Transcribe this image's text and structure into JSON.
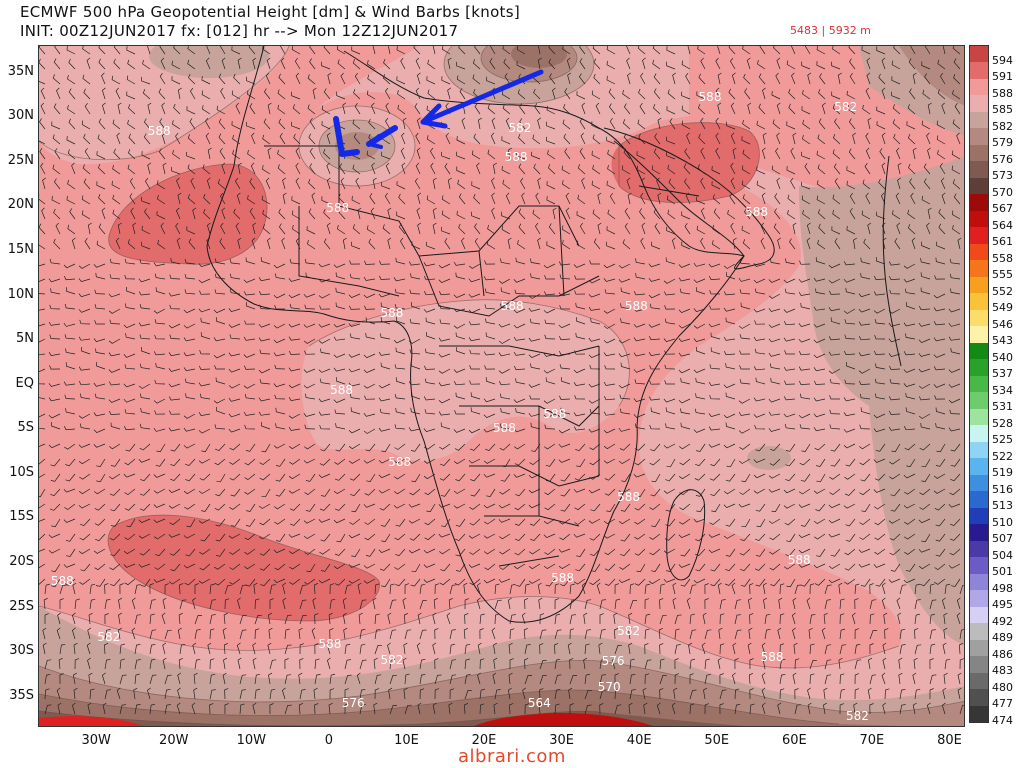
{
  "title": {
    "line1": "ECMWF 500 hPa Geopotential Height [dm] & Wind Barbs [knots]",
    "line2": "INIT: 00Z12JUN2017 fx: [012] hr --> Mon 12Z12JUN2017"
  },
  "minmax_text": "5483 | 5932 m",
  "lat_ticks": [
    "35N",
    "30N",
    "25N",
    "20N",
    "15N",
    "10N",
    "5N",
    "EQ",
    "5S",
    "10S",
    "15S",
    "20S",
    "25S",
    "30S",
    "35S"
  ],
  "lon_ticks": [
    "30W",
    "20W",
    "10W",
    "0",
    "10E",
    "20E",
    "30E",
    "40E",
    "50E",
    "60E",
    "70E",
    "80E"
  ],
  "colorbar": {
    "levels": [
      "594",
      "591",
      "588",
      "585",
      "582",
      "579",
      "576",
      "573",
      "570",
      "567",
      "564",
      "561",
      "558",
      "555",
      "552",
      "549",
      "546",
      "543",
      "540",
      "537",
      "534",
      "531",
      "528",
      "525",
      "522",
      "519",
      "516",
      "513",
      "510",
      "507",
      "504",
      "501",
      "498",
      "495",
      "492",
      "489",
      "486",
      "483",
      "480",
      "477",
      "474"
    ],
    "colors": [
      "#c94545",
      "#e26b6b",
      "#f09a9a",
      "#eaaeae",
      "#c7a39b",
      "#b4897f",
      "#9c7266",
      "#7f5a4f",
      "#5e3f38",
      "#9e0a0a",
      "#c00e0e",
      "#e02020",
      "#f04a1a",
      "#f5761a",
      "#f7a020",
      "#f9c23a",
      "#fcdc6a",
      "#fdf2a8",
      "#138a13",
      "#2aa12a",
      "#48b848",
      "#6dcd6d",
      "#9ee39e",
      "#c8f5f0",
      "#8fd4f5",
      "#5bb4f0",
      "#3e8fe0",
      "#2a6ad0",
      "#1f3fb8",
      "#281a90",
      "#4a3aa8",
      "#6a5cc4",
      "#8e84d8",
      "#b0a8e6",
      "#d6d0f4",
      "#bcbcbc",
      "#a0a0a0",
      "#858585",
      "#6a6a6a",
      "#505050",
      "#363636"
    ]
  },
  "contour_labels": [
    {
      "text": "588",
      "lon": -22,
      "lat": 28.5
    },
    {
      "text": "588",
      "lon": 1,
      "lat": 19.8
    },
    {
      "text": "582",
      "lon": 24.5,
      "lat": 28.8
    },
    {
      "text": "588",
      "lon": 24,
      "lat": 25.5
    },
    {
      "text": "588",
      "lon": 49,
      "lat": 32.3
    },
    {
      "text": "582",
      "lon": 66.5,
      "lat": 31.2
    },
    {
      "text": "588",
      "lon": 55,
      "lat": 19.4
    },
    {
      "text": "588",
      "lon": 8,
      "lat": 8.1
    },
    {
      "text": "588",
      "lon": 23.5,
      "lat": 8.8
    },
    {
      "text": "588",
      "lon": 39.5,
      "lat": 8.8
    },
    {
      "text": "588",
      "lon": 1.5,
      "lat": -0.6
    },
    {
      "text": "588",
      "lon": 29,
      "lat": -3.3
    },
    {
      "text": "588",
      "lon": 22.5,
      "lat": -4.8
    },
    {
      "text": "588",
      "lon": 9,
      "lat": -8.7
    },
    {
      "text": "588",
      "lon": 38.5,
      "lat": -12.6
    },
    {
      "text": "588",
      "lon": -34.5,
      "lat": -22
    },
    {
      "text": "588",
      "lon": 30,
      "lat": -21.7
    },
    {
      "text": "588",
      "lon": 60.5,
      "lat": -19.7
    },
    {
      "text": "582",
      "lon": -28.5,
      "lat": -28.3
    },
    {
      "text": "582",
      "lon": 38.5,
      "lat": -27.6
    },
    {
      "text": "588",
      "lon": 0,
      "lat": -29.1
    },
    {
      "text": "582",
      "lon": 8,
      "lat": -30.9
    },
    {
      "text": "576",
      "lon": 36.5,
      "lat": -31
    },
    {
      "text": "588",
      "lon": 57,
      "lat": -30.5
    },
    {
      "text": "570",
      "lon": 36,
      "lat": -33.9
    },
    {
      "text": "576",
      "lon": 3,
      "lat": -35.7
    },
    {
      "text": "564",
      "lon": 27,
      "lat": -35.7
    },
    {
      "text": "582",
      "lon": 68,
      "lat": -37.1
    }
  ],
  "watermark": "albrari.com"
}
